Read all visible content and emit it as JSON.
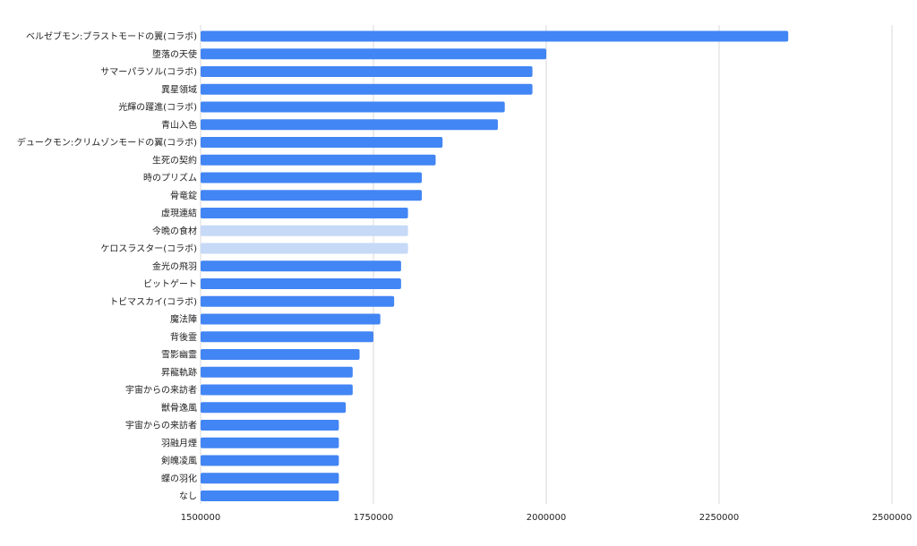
{
  "chart_data": {
    "type": "bar",
    "orientation": "horizontal",
    "categories": [
      "ベルゼブモン:ブラストモードの翼(コラボ)",
      "堕落の天使",
      "サマーパラソル(コラボ)",
      "異星領域",
      "光輝の躍進(コラボ)",
      "青山入色",
      "デュークモン:クリムゾンモードの翼(コラボ)",
      "生死の契約",
      "時のプリズム",
      "骨竜錠",
      "虚現連結",
      "今晩の食材",
      "ケロスラスター(コラボ)",
      "金光の飛羽",
      "ビットゲート",
      "トビマスカイ(コラボ)",
      "魔法陣",
      "背後霊",
      "雪影幽霊",
      "昇龍軌跡",
      "宇宙からの来訪者",
      "獣骨逸風",
      "宇宙からの来訪者",
      "羽融月煙",
      "剣魄凌風",
      "蝶の羽化",
      "なし"
    ],
    "values": [
      2350000,
      2000000,
      1980000,
      1980000,
      1940000,
      1930000,
      1850000,
      1840000,
      1820000,
      1820000,
      1800000,
      1800000,
      1800000,
      1790000,
      1790000,
      1780000,
      1760000,
      1750000,
      1730000,
      1720000,
      1720000,
      1710000,
      1700000,
      1700000,
      1700000,
      1700000,
      1700000
    ],
    "highlighted": [
      false,
      false,
      false,
      false,
      false,
      false,
      false,
      false,
      false,
      false,
      false,
      true,
      true,
      false,
      false,
      false,
      false,
      false,
      false,
      false,
      false,
      false,
      false,
      false,
      false,
      false,
      false
    ],
    "xlim": [
      1500000,
      2500000
    ],
    "xticks": [
      1500000,
      1750000,
      2000000,
      2250000,
      2500000
    ],
    "xtick_labels": [
      "1500000",
      "1750000",
      "2000000",
      "2250000",
      "2500000"
    ],
    "grid": true,
    "legend": "none",
    "colors": {
      "bar": "#4285f4",
      "bar_highlight": "#c6d9f7",
      "grid": "#d9d9d9"
    }
  }
}
